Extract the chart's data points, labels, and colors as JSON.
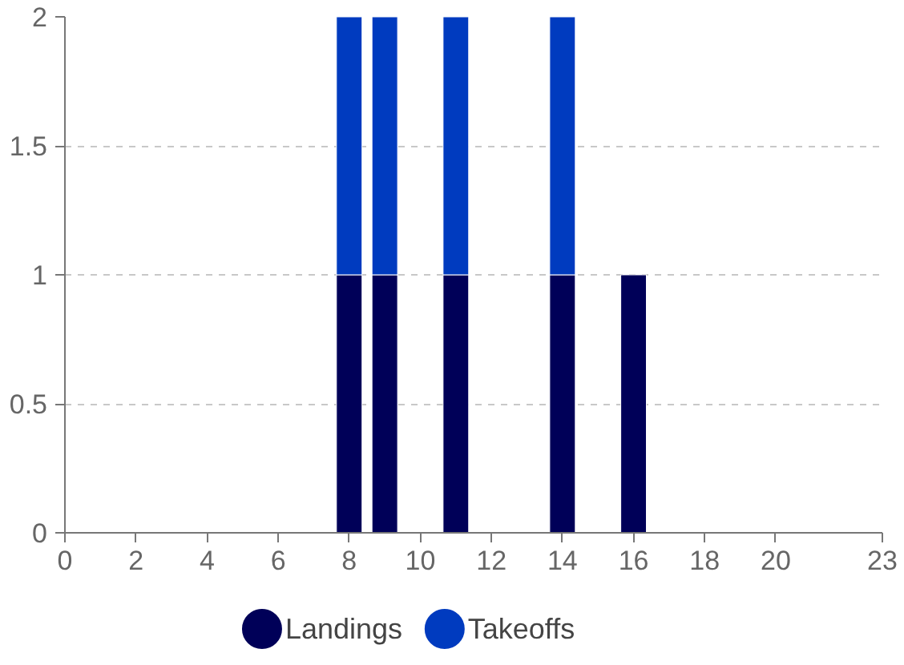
{
  "chart_data": {
    "type": "bar",
    "stacked": true,
    "x": [
      8,
      9,
      11,
      14,
      16
    ],
    "series": [
      {
        "name": "Landings",
        "color": "#000058",
        "values": [
          1,
          1,
          1,
          1,
          1
        ]
      },
      {
        "name": "Takeoffs",
        "color": "#003bbf",
        "values": [
          1,
          1,
          1,
          1,
          0
        ]
      }
    ],
    "xlim": [
      0,
      23
    ],
    "xticks": [
      0,
      2,
      4,
      6,
      8,
      10,
      12,
      14,
      16,
      18,
      20,
      23
    ],
    "ylim": [
      0,
      2
    ],
    "yticks": [
      0,
      0.5,
      1,
      1.5,
      2
    ],
    "grid": "y",
    "legend": "bottom"
  }
}
